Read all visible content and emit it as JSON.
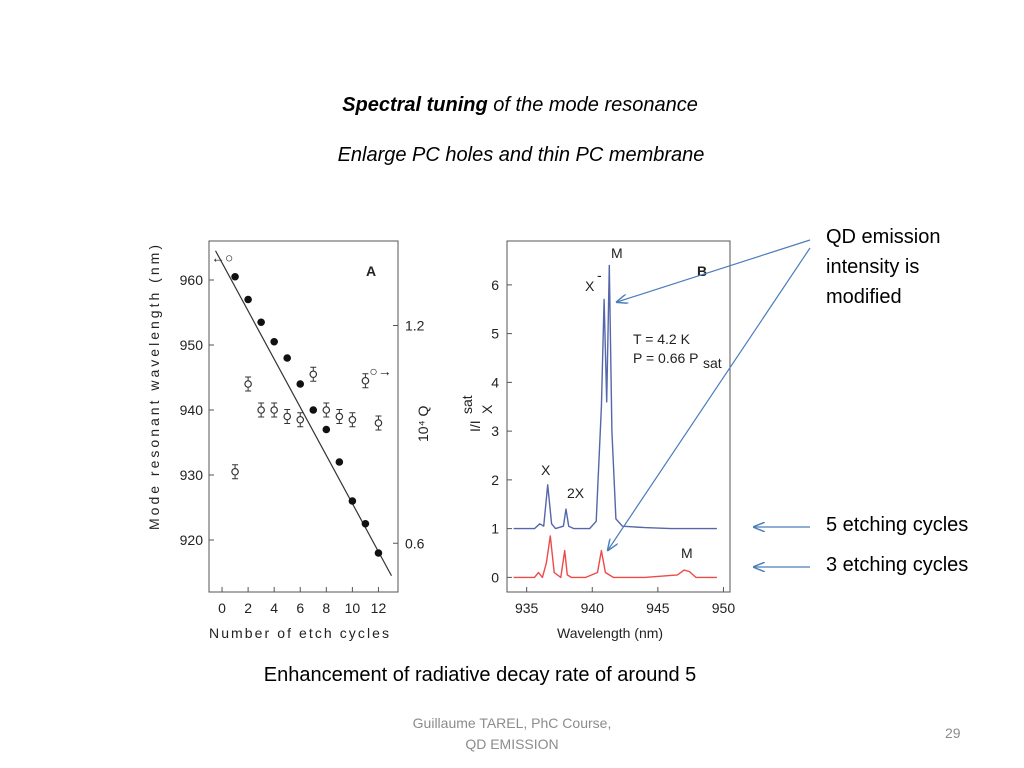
{
  "slide": {
    "title_bold": "Spectral tuning",
    "title_rest": " of the mode resonance",
    "subtitle": "Enlarge PC holes and thin PC membrane",
    "callout_lines": [
      "QD emission",
      "intensity is",
      "modified"
    ],
    "label_5": "5 etching cycles",
    "label_3": "3 etching cycles",
    "caption": "Enhancement of radiative decay rate of around 5",
    "footer_line1": "Guillaume TAREL, PhC Course,",
    "footer_line2": "QD EMISSION",
    "page_number": "29",
    "arrow_color": "#4a7ebb"
  },
  "chart_data": [
    {
      "type": "scatter",
      "panel_label": "A",
      "xlabel": "Number of etch cycles",
      "ylabel_left": "Mode resonant wavelength (nm)",
      "ylabel_right": "10⁴ Q",
      "xlim": [
        -1,
        13.5
      ],
      "ylim": [
        912,
        966
      ],
      "xticks": [
        "0",
        "2",
        "4",
        "6",
        "8",
        "10",
        "12"
      ],
      "yticks_left": [
        "960",
        "950",
        "940",
        "930",
        "920"
      ],
      "yticks_right": [
        "1.2",
        "0.6"
      ],
      "series": [
        {
          "marker": "filled-circle",
          "x": [
            1,
            2,
            3,
            4,
            5,
            6,
            7,
            8,
            9,
            10,
            11,
            12
          ],
          "y": [
            960.5,
            957,
            953.5,
            950.5,
            948,
            944,
            940,
            937,
            932,
            926,
            922.5,
            918
          ]
        },
        {
          "marker": "open-circle-errorbar",
          "x": [
            1,
            2,
            3,
            4,
            5,
            6,
            7,
            8,
            9,
            10,
            11,
            12
          ],
          "y": [
            930.5,
            944,
            940,
            940,
            939,
            938.5,
            945.5,
            940,
            939,
            938.5,
            944.5,
            938
          ]
        },
        {
          "marker": "line",
          "x": [
            -0.5,
            13
          ],
          "y": [
            964.5,
            914.5
          ]
        }
      ],
      "annotations": [
        "←○",
        "○→"
      ]
    },
    {
      "type": "line",
      "panel_label": "B",
      "xlabel": "Wavelength (nm)",
      "ylabel": "I/I_X^sat",
      "xlim": [
        933.5,
        950.5
      ],
      "ylim": [
        -0.3,
        6.9
      ],
      "xticks": [
        "935",
        "940",
        "945",
        "950"
      ],
      "yticks": [
        "0",
        "1",
        "2",
        "3",
        "4",
        "5",
        "6"
      ],
      "annotation_text": [
        "T = 4.2 K",
        "P = 0.66 P",
        "sat"
      ],
      "peak_labels": [
        "X",
        "2X",
        "X",
        "-",
        "M",
        "M"
      ],
      "series": [
        {
          "color": "#5566aa",
          "x": [
            934.0,
            935.6,
            936.0,
            936.3,
            936.6,
            936.9,
            937.2,
            937.8,
            938.0,
            938.2,
            938.6,
            939.8,
            940.3,
            940.7,
            940.9,
            941.1,
            941.3,
            941.5,
            941.8,
            942.3,
            944.0,
            946.0,
            948.0,
            949.5
          ],
          "y": [
            1.0,
            1.0,
            1.1,
            1.05,
            1.9,
            1.1,
            1.0,
            1.05,
            1.4,
            1.05,
            1.0,
            1.0,
            1.15,
            3.5,
            5.7,
            3.6,
            6.4,
            3.0,
            1.2,
            1.05,
            1.02,
            1.0,
            1.0,
            1.0
          ]
        },
        {
          "color": "#ee4a4a",
          "x": [
            934.0,
            935.6,
            935.9,
            936.2,
            936.5,
            936.8,
            937.1,
            937.6,
            937.9,
            938.1,
            938.4,
            939.5,
            940.4,
            940.7,
            941.0,
            941.6,
            942.5,
            944.0,
            946.5,
            947.0,
            947.4,
            947.9,
            949.5
          ],
          "y": [
            0.0,
            0.0,
            0.1,
            0.0,
            0.3,
            0.85,
            0.1,
            0.0,
            0.55,
            0.05,
            0.0,
            0.0,
            0.1,
            0.55,
            0.1,
            0.0,
            0.0,
            0.0,
            0.05,
            0.15,
            0.12,
            0.0,
            0.0
          ]
        }
      ]
    }
  ]
}
